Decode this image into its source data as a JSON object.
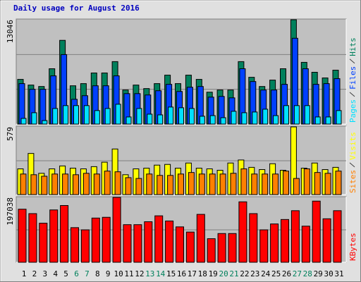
{
  "chart_data": [
    {
      "type": "bar",
      "title": "Daily usage for August 2016",
      "series": [
        {
          "name": "Hits",
          "color": "#00805c",
          "values": [
            5590,
            4880,
            4700,
            6920,
            10470,
            4790,
            5060,
            6390,
            6390,
            7810,
            4260,
            4880,
            4440,
            5060,
            6120,
            5060,
            6120,
            5590,
            3990,
            4260,
            4260,
            7810,
            5850,
            4700,
            5500,
            6920,
            13046,
            7720,
            6480,
            5770,
            6740
          ]
        },
        {
          "name": "Files",
          "color": "#0040ff",
          "values": [
            5060,
            4350,
            4350,
            6030,
            8690,
            3100,
            3550,
            4790,
            4790,
            6030,
            3810,
            3810,
            3640,
            4170,
            4970,
            4080,
            4610,
            4700,
            3370,
            3460,
            3280,
            6920,
            5320,
            4260,
            4260,
            4970,
            10730,
            6920,
            4970,
            5060,
            5680
          ]
        },
        {
          "name": "Pages",
          "color": "#00e0ff",
          "values": [
            710,
            1420,
            440,
            1950,
            2310,
            2310,
            2310,
            1690,
            1950,
            2480,
            890,
            1950,
            1240,
            1150,
            2130,
            2040,
            1950,
            980,
            1060,
            800,
            1600,
            1420,
            1510,
            1860,
            1060,
            2310,
            2310,
            2310,
            890,
            890,
            1690
          ]
        }
      ],
      "ylim": [
        0,
        13046
      ],
      "yticks": [
        13046
      ],
      "grid_divisions": 3
    },
    {
      "type": "bar",
      "series": [
        {
          "name": "Visits",
          "color": "#ffff00",
          "values": [
            220,
            352,
            182,
            220,
            245,
            226,
            220,
            239,
            277,
            390,
            170,
            220,
            226,
            252,
            258,
            226,
            270,
            226,
            220,
            208,
            270,
            296,
            233,
            214,
            264,
            208,
            579,
            226,
            270,
            214,
            233
          ]
        },
        {
          "name": "Sites",
          "color": "#ff8000",
          "values": [
            176,
            170,
            157,
            176,
            176,
            170,
            182,
            176,
            201,
            195,
            145,
            138,
            176,
            164,
            164,
            176,
            189,
            176,
            176,
            176,
            182,
            220,
            176,
            176,
            176,
            201,
            138,
            220,
            189,
            182,
            201
          ]
        }
      ],
      "ylim": [
        0,
        579
      ],
      "yticks": [
        579
      ],
      "grid_divisions": 2
    },
    {
      "type": "bar",
      "categories": [
        "1",
        "2",
        "3",
        "4",
        "5",
        "6",
        "7",
        "8",
        "9",
        "10",
        "11",
        "12",
        "13",
        "14",
        "15",
        "16",
        "17",
        "18",
        "19",
        "20",
        "21",
        "22",
        "23",
        "24",
        "25",
        "26",
        "27",
        "28",
        "29",
        "30",
        "31"
      ],
      "category_colors": [
        "#000000",
        "#000000",
        "#000000",
        "#000000",
        "#000000",
        "#00805c",
        "#00805c",
        "#000000",
        "#000000",
        "#000000",
        "#000000",
        "#000000",
        "#00805c",
        "#00805c",
        "#000000",
        "#000000",
        "#000000",
        "#000000",
        "#000000",
        "#00805c",
        "#00805c",
        "#000000",
        "#000000",
        "#000000",
        "#000000",
        "#000000",
        "#00805c",
        "#00805c",
        "#000000",
        "#000000",
        "#000000"
      ],
      "series": [
        {
          "name": "KBytes",
          "color": "#ff0000",
          "values": [
            161200,
            147800,
            118700,
            159000,
            172400,
            105200,
            98500,
            134300,
            136600,
            197038,
            114200,
            114200,
            123100,
            141100,
            125400,
            107500,
            91800,
            145500,
            71600,
            87300,
            87300,
            183600,
            147800,
            98500,
            116400,
            129900,
            156700,
            109700,
            185800,
            132100,
            156700
          ]
        }
      ],
      "ylim": [
        0,
        197038
      ],
      "yticks": [
        197038
      ],
      "grid_divisions": 2
    }
  ]
}
